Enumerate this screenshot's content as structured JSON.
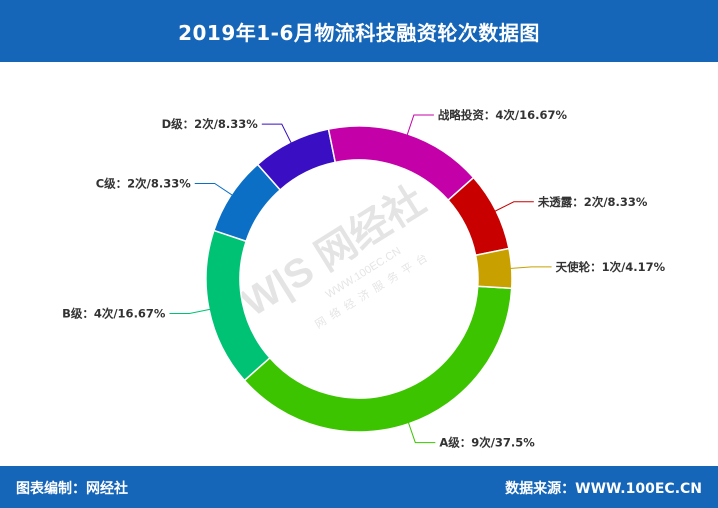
{
  "header": {
    "title": "2019年1-6月物流科技融资轮次数据图"
  },
  "footer": {
    "editor": "图表编制：网经社",
    "source": "数据来源：WWW.100EC.CN"
  },
  "watermark": {
    "logo": "W|S 网经社",
    "url": "WWW.100EC.CN",
    "tagline": "网络经济服务平台"
  },
  "chart_data": {
    "type": "pie",
    "variant": "donut",
    "slices": [
      {
        "name": "A级",
        "count": 9,
        "percent": 37.5,
        "label": "A级：9次/37.5%",
        "color": "#3cc400"
      },
      {
        "name": "B级",
        "count": 4,
        "percent": 16.67,
        "label": "B级：4次/16.67%",
        "color": "#00c274"
      },
      {
        "name": "C级",
        "count": 2,
        "percent": 8.33,
        "label": "C级：2次/8.33%",
        "color": "#0b6fc6"
      },
      {
        "name": "D级",
        "count": 2,
        "percent": 8.33,
        "label": "D级：2次/8.33%",
        "color": "#3a0ec2"
      },
      {
        "name": "战略投资",
        "count": 4,
        "percent": 16.67,
        "label": "战略投资：4次/16.67%",
        "color": "#c400a8"
      },
      {
        "name": "未透露",
        "count": 2,
        "percent": 8.33,
        "label": "未透露：2次/8.33%",
        "color": "#c80000"
      },
      {
        "name": "天使轮",
        "count": 1,
        "percent": 4.17,
        "label": "天使轮：1次/4.17%",
        "color": "#c8a000"
      }
    ]
  }
}
